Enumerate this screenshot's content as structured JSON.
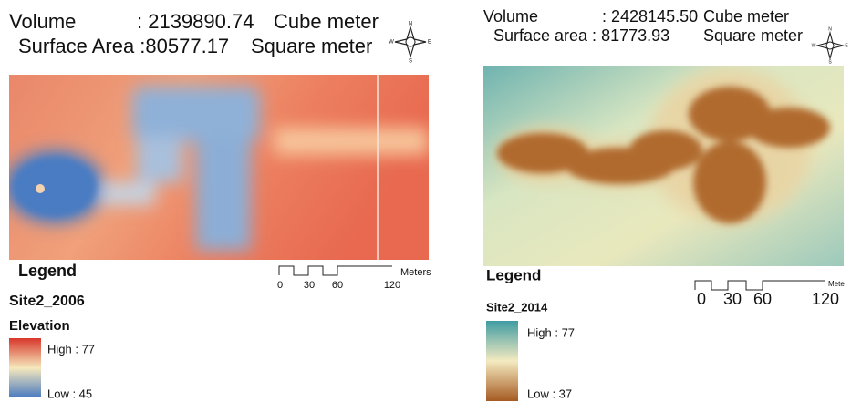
{
  "left": {
    "header": {
      "line1": [
        "Volume",
        ": 2139890.74",
        "Cube meter"
      ],
      "line2": [
        "Surface Area :80577.17",
        "Square meter"
      ]
    },
    "compass": [
      "N",
      "W",
      "E",
      "S"
    ],
    "scale_bar": {
      "ticks": [
        "0",
        "30",
        "60",
        "120"
      ],
      "unit": "Meters"
    },
    "legend": {
      "title": "Legend",
      "layer": "Site2_2006",
      "field": "Elevation",
      "high": "High : 77",
      "low": "Low : 45"
    }
  },
  "right": {
    "header": {
      "line1": [
        "Volume",
        ": 2428145.50",
        "Cube meter"
      ],
      "line2": [
        "Surface area : 81773.93",
        "Square meter"
      ]
    },
    "compass": [
      "N",
      "W",
      "E",
      "S"
    ],
    "scale_bar": {
      "ticks": [
        "0",
        "30",
        "60",
        "120"
      ],
      "unit": "Mete"
    },
    "legend": {
      "title": "Legend",
      "layer": "Site2_2014",
      "high": "High : 77",
      "low": "Low : 37"
    }
  }
}
